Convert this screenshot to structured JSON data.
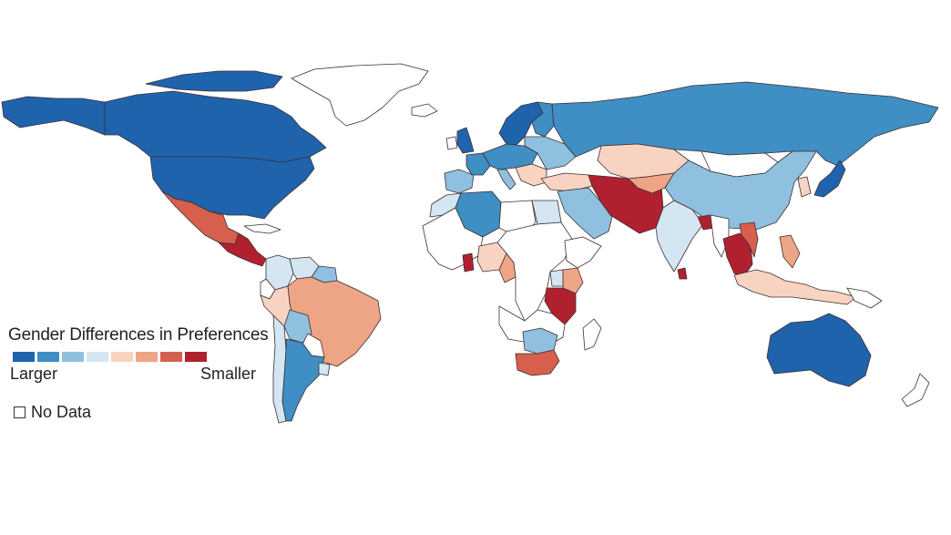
{
  "legend": {
    "title": "Gender Differences in Preferences",
    "low_label": "Larger",
    "high_label": "Smaller",
    "no_data_label": "No Data",
    "colors": [
      "#1f63ad",
      "#3f8ec4",
      "#8fc0df",
      "#d3e6f2",
      "#f8d3c1",
      "#eea585",
      "#d6604d",
      "#b0202f"
    ]
  },
  "no_data_color": "#ffffff",
  "regions": [
    {
      "id": "greenland",
      "cls": -1
    },
    {
      "id": "alaska",
      "cls": 0
    },
    {
      "id": "canada",
      "cls": 0
    },
    {
      "id": "canada-arctic-islands",
      "cls": 0
    },
    {
      "id": "usa",
      "cls": 0
    },
    {
      "id": "mexico",
      "cls": 6
    },
    {
      "id": "central-america",
      "cls": 7
    },
    {
      "id": "cuba",
      "cls": -1
    },
    {
      "id": "colombia",
      "cls": 3
    },
    {
      "id": "venezuela",
      "cls": 3
    },
    {
      "id": "guianas",
      "cls": 2
    },
    {
      "id": "ecuador",
      "cls": -1
    },
    {
      "id": "peru",
      "cls": 4
    },
    {
      "id": "brazil",
      "cls": 5
    },
    {
      "id": "bolivia",
      "cls": 2
    },
    {
      "id": "paraguay",
      "cls": -1
    },
    {
      "id": "chile",
      "cls": 3
    },
    {
      "id": "argentina",
      "cls": 1
    },
    {
      "id": "uruguay",
      "cls": 3
    },
    {
      "id": "iceland",
      "cls": -1
    },
    {
      "id": "united-kingdom",
      "cls": 0
    },
    {
      "id": "ireland",
      "cls": -1
    },
    {
      "id": "scandinavia",
      "cls": 0
    },
    {
      "id": "finland",
      "cls": 1
    },
    {
      "id": "iberia",
      "cls": 2
    },
    {
      "id": "france",
      "cls": 1
    },
    {
      "id": "central-europe",
      "cls": 1
    },
    {
      "id": "italy",
      "cls": 2
    },
    {
      "id": "balkans",
      "cls": 4
    },
    {
      "id": "eastern-europe",
      "cls": 2
    },
    {
      "id": "russia",
      "cls": 1
    },
    {
      "id": "kazakhstan",
      "cls": 4
    },
    {
      "id": "mongolia",
      "cls": -1
    },
    {
      "id": "china",
      "cls": 2
    },
    {
      "id": "korea",
      "cls": 4
    },
    {
      "id": "japan",
      "cls": 0
    },
    {
      "id": "turkey",
      "cls": 4
    },
    {
      "id": "middle-east",
      "cls": 2
    },
    {
      "id": "iran-afghanistan-pakistan",
      "cls": 7
    },
    {
      "id": "central-asia",
      "cls": 5
    },
    {
      "id": "india",
      "cls": 3
    },
    {
      "id": "bangladesh",
      "cls": 7
    },
    {
      "id": "sri-lanka",
      "cls": 7
    },
    {
      "id": "myanmar",
      "cls": -1
    },
    {
      "id": "thailand-indochina",
      "cls": 7
    },
    {
      "id": "vietnam",
      "cls": 6
    },
    {
      "id": "philippines",
      "cls": 5
    },
    {
      "id": "indonesia-malaysia",
      "cls": 4
    },
    {
      "id": "papua-new-guinea",
      "cls": -1
    },
    {
      "id": "australia",
      "cls": 0
    },
    {
      "id": "new-zealand",
      "cls": -1
    },
    {
      "id": "morocco",
      "cls": 3
    },
    {
      "id": "algeria",
      "cls": 1
    },
    {
      "id": "libya",
      "cls": -1
    },
    {
      "id": "egypt",
      "cls": 3
    },
    {
      "id": "west-africa",
      "cls": -1
    },
    {
      "id": "ghana",
      "cls": 7
    },
    {
      "id": "nigeria",
      "cls": 4
    },
    {
      "id": "cameroon",
      "cls": 5
    },
    {
      "id": "central-africa",
      "cls": -1
    },
    {
      "id": "horn-of-africa",
      "cls": -1
    },
    {
      "id": "kenya",
      "cls": 5
    },
    {
      "id": "uganda",
      "cls": 3
    },
    {
      "id": "tanzania",
      "cls": 7
    },
    {
      "id": "southern-africa-north",
      "cls": -1
    },
    {
      "id": "zimbabwe-botswana",
      "cls": 2
    },
    {
      "id": "south-africa",
      "cls": 6
    },
    {
      "id": "madagascar",
      "cls": -1
    }
  ]
}
